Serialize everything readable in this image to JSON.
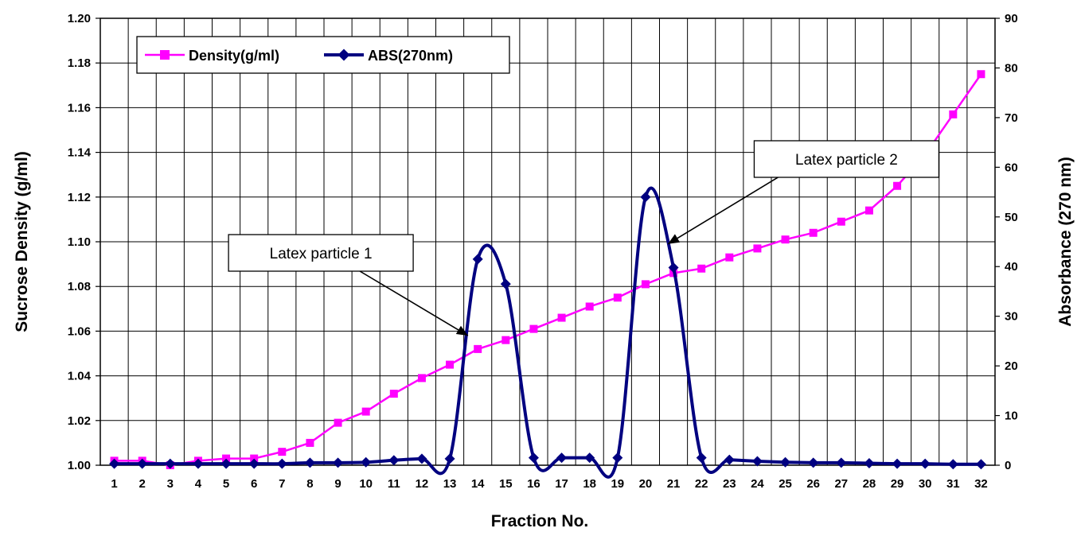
{
  "chart_data": {
    "type": "line",
    "x": [
      1,
      2,
      3,
      4,
      5,
      6,
      7,
      8,
      9,
      10,
      11,
      12,
      13,
      14,
      15,
      16,
      17,
      18,
      19,
      20,
      21,
      22,
      23,
      24,
      25,
      26,
      27,
      28,
      29,
      30,
      31,
      32
    ],
    "xlabel": "Fraction No.",
    "ylabel": "Sucrose Density (g/ml)",
    "y2label": "Absorbance (270 nm)",
    "ylim": [
      1.0,
      1.2
    ],
    "y2lim": [
      0,
      90
    ],
    "yticks": [
      "1.00",
      "1.02",
      "1.04",
      "1.06",
      "1.08",
      "1.10",
      "1.12",
      "1.14",
      "1.16",
      "1.18",
      "1.20"
    ],
    "y2ticks": [
      "0",
      "10",
      "20",
      "30",
      "40",
      "50",
      "60",
      "70",
      "80",
      "90"
    ],
    "grid": true,
    "legend_position": "top-left",
    "series": [
      {
        "name": "Density(g/ml)",
        "axis": "left",
        "color": "#FF00FF",
        "marker": "square",
        "smooth": false,
        "values": [
          1.002,
          1.002,
          1.0,
          1.002,
          1.003,
          1.003,
          1.006,
          1.01,
          1.019,
          1.024,
          1.032,
          1.039,
          1.045,
          1.052,
          1.056,
          1.061,
          1.066,
          1.071,
          1.075,
          1.081,
          1.086,
          1.088,
          1.093,
          1.097,
          1.101,
          1.104,
          1.109,
          1.114,
          1.125,
          1.139,
          1.157,
          1.175
        ]
      },
      {
        "name": "ABS(270nm)",
        "axis": "right",
        "color": "#000080",
        "marker": "diamond",
        "smooth": true,
        "values": [
          0.3,
          0.3,
          0.3,
          0.3,
          0.3,
          0.3,
          0.3,
          0.5,
          0.5,
          0.6,
          1.0,
          1.3,
          1.3,
          41.5,
          36.5,
          1.5,
          1.5,
          1.5,
          1.5,
          54.0,
          39.8,
          1.5,
          1.1,
          0.8,
          0.6,
          0.5,
          0.5,
          0.4,
          0.3,
          0.3,
          0.2,
          0.2
        ]
      }
    ],
    "annotations": [
      {
        "text": "Latex particle 1",
        "box_at": [
          5.2,
          1.1
        ],
        "points_to": [
          13.65,
          1.058
        ]
      },
      {
        "text": "Latex particle 2",
        "box_at": [
          24,
          1.142
        ],
        "points_to": [
          20.8,
          1.099
        ]
      }
    ]
  }
}
